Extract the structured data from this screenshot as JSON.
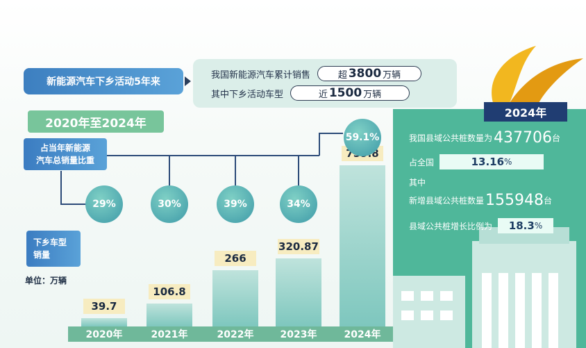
{
  "banner": "新能源汽车下乡活动5年来",
  "sales_summary": {
    "cumulative_label": "我国新能源汽车累计销售",
    "cumulative_prefix": "超",
    "cumulative_value": "3800",
    "cumulative_unit": "万辆",
    "rural_label": "其中下乡活动车型",
    "rural_prefix": "近",
    "rural_value": "1500",
    "rural_unit": "万辆"
  },
  "period_label": "2020年至2024年",
  "share_label": [
    "占当年新能源",
    "汽车总销量比重"
  ],
  "sales_label": [
    "下乡车型",
    "销量"
  ],
  "unit_label": "单位：万辆",
  "right_panel": {
    "year_badge": "2024年",
    "line1_text": "我国县域公共桩数量为",
    "line1_value": "437706",
    "line1_unit": "台",
    "line2_text": "占全国",
    "line2_value": "13.16",
    "line2_unit": "%",
    "line3_text": "其中",
    "line4_text": "新增县域公共桩数量",
    "line4_value": "155948",
    "line4_unit": "台",
    "line5_text": "县域公共桩增长比例为",
    "line5_value": "18.3",
    "line5_unit": "%"
  },
  "colors": {
    "bar": "#7ec7be",
    "circle": "#3e9aa8",
    "accent_green": "#6fb89a",
    "panel": "#4fb79a",
    "badge": "#203d72"
  },
  "chart_data": {
    "type": "bar",
    "categories": [
      "2020年",
      "2021年",
      "2022年",
      "2023年",
      "2024年"
    ],
    "series": [
      {
        "name": "下乡车型销量",
        "values": [
          39.7,
          106.8,
          266,
          320.87,
          759.8
        ]
      }
    ],
    "value_labels": [
      "39.7",
      "106.8",
      "266",
      "320.87",
      "759.8"
    ],
    "share_values": [
      29,
      30,
      39,
      34,
      59.1
    ],
    "share_labels": [
      "29%",
      "30%",
      "39%",
      "34%",
      "59.1%"
    ],
    "xlabel": "",
    "ylabel": "",
    "ylim": [
      0,
      800
    ]
  }
}
